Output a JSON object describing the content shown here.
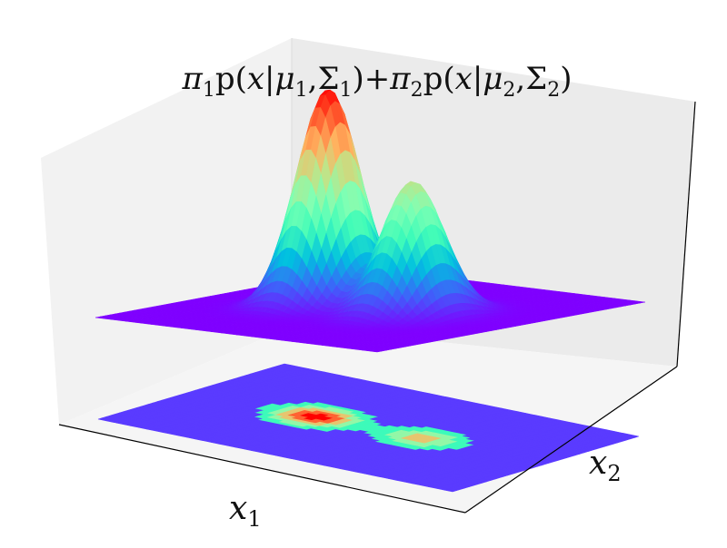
{
  "chart_data": {
    "type": "surface3d",
    "title": "π₁p(x|μ₁,Σ₁)+π₂p(x|μ₂,Σ₂)",
    "title_parts": {
      "pi": "π",
      "p": "p",
      "open": "(",
      "x": "x",
      "bar": "|",
      "mu": "μ",
      "comma": ",",
      "sigma": "Σ",
      "close": ")",
      "plus": "+",
      "sub1": "1",
      "sub2": "2"
    },
    "xlabel": {
      "base": "x",
      "sub": "1"
    },
    "ylabel": {
      "base": "x",
      "sub": "2"
    },
    "colormap": "rainbow",
    "colormap_stops": [
      "#7f00ff",
      "#3f61fa",
      "#00c0e0",
      "#40fcb8",
      "#80ffb4",
      "#c0e388",
      "#ffb360",
      "#ff5f30",
      "#ff0000"
    ],
    "contour_levels": [
      0.0,
      0.18,
      0.36,
      0.54,
      0.72,
      0.9
    ],
    "components": [
      {
        "weight": 1.0,
        "mean": [
          -0.9,
          0.0
        ],
        "std": [
          0.45,
          0.55
        ]
      },
      {
        "weight": 0.62,
        "mean": [
          0.9,
          0.0
        ],
        "std": [
          0.45,
          0.55
        ]
      }
    ],
    "x_range": [
      -3,
      3
    ],
    "y_range": [
      -3,
      3
    ],
    "grid": false
  }
}
